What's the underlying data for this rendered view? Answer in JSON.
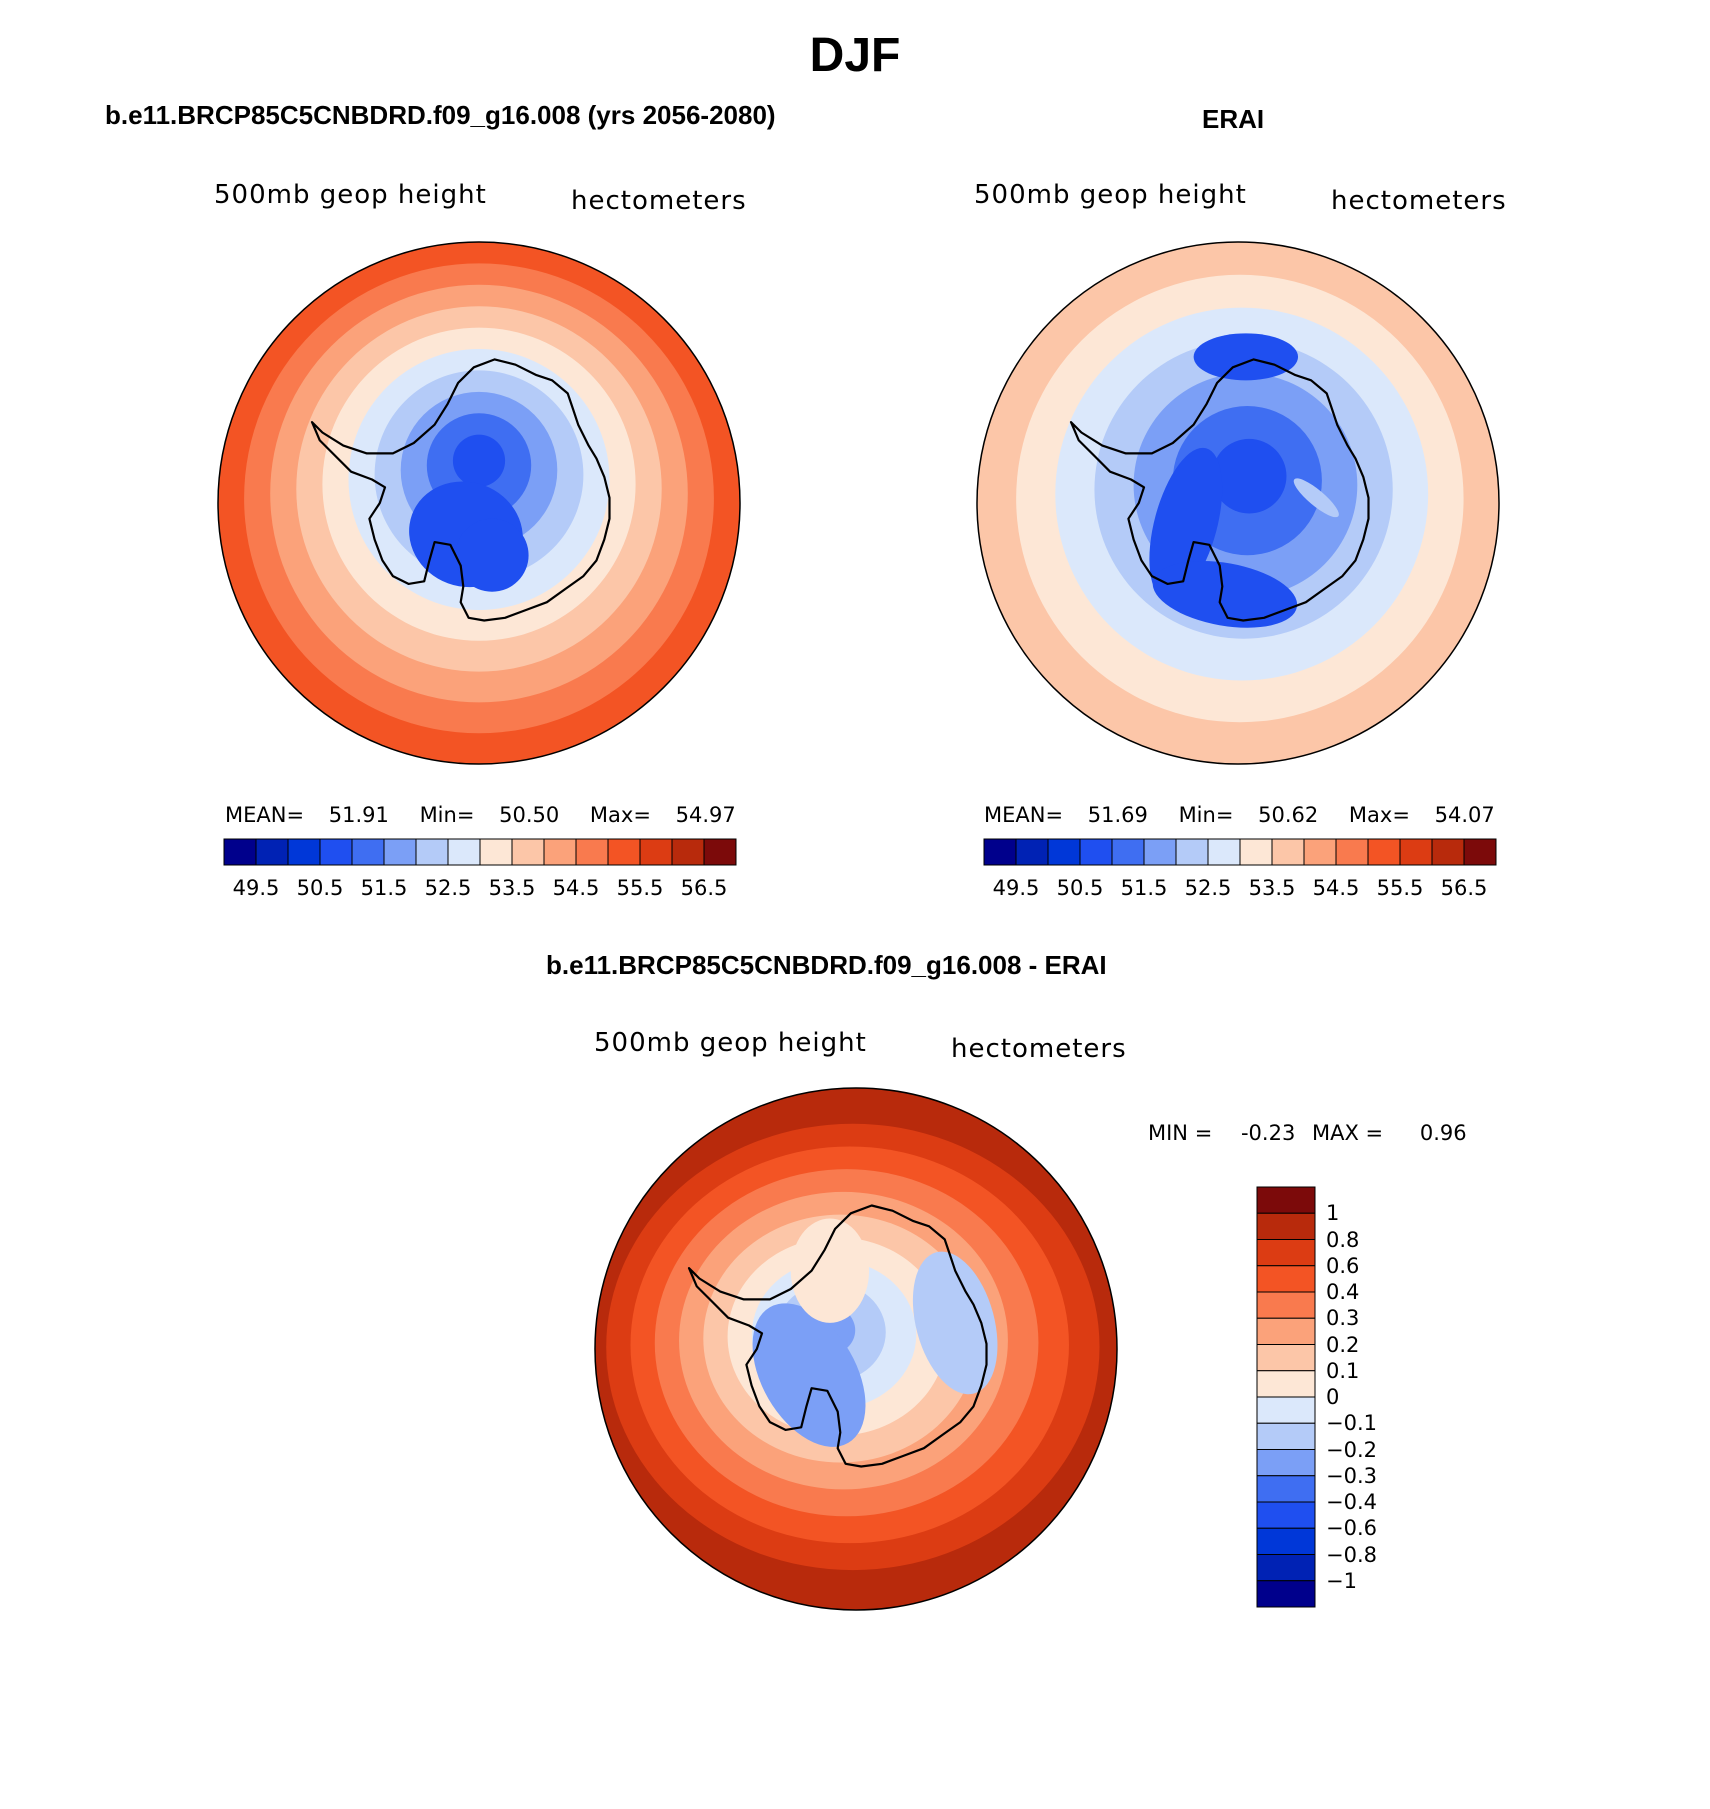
{
  "figure": {
    "title": "DJF"
  },
  "panels": [
    {
      "title": "b.e11.BRCP85C5CNBDRD.f09_g16.008 (yrs 2056-2080)",
      "variable": "500mb geop height",
      "units": "hectometers",
      "stats": {
        "mean_label": "MEAN=",
        "mean": "51.91",
        "min_label": "Min=",
        "min": "50.50",
        "max_label": "Max=",
        "max": "54.97"
      }
    },
    {
      "title": "ERAI",
      "variable": "500mb geop height",
      "units": "hectometers",
      "stats": {
        "mean_label": "MEAN=",
        "mean": "51.69",
        "min_label": "Min=",
        "min": "50.62",
        "max_label": "Max=",
        "max": "54.07"
      }
    },
    {
      "title": "b.e11.BRCP85C5CNBDRD.f09_g16.008 - ERAI",
      "variable": "500mb geop height",
      "units": "hectometers",
      "stats": {
        "min_label": "MIN =",
        "min": "-0.23",
        "max_label": "MAX =",
        "max": "0.96"
      }
    }
  ],
  "colorbars": {
    "height": {
      "colors": [
        "#00008c",
        "#0022b4",
        "#0037d8",
        "#1f4ff0",
        "#3f6ef2",
        "#7b9ff6",
        "#b4cbf8",
        "#dbe8fb",
        "#fde7d6",
        "#fcc6a8",
        "#fba27a",
        "#f97a4e",
        "#f35424",
        "#dc3c13",
        "#b82a0c",
        "#7c0a0a"
      ],
      "tick_labels": [
        "49.5",
        "50.5",
        "51.5",
        "52.5",
        "53.5",
        "54.5",
        "55.5",
        "56.5"
      ]
    },
    "difference": {
      "colors_top_to_bottom": [
        "#7c0a0a",
        "#b82a0c",
        "#dc3c13",
        "#f35424",
        "#f97a4e",
        "#fba27a",
        "#fcc6a8",
        "#fde7d6",
        "#dbe8fb",
        "#b4cbf8",
        "#7b9ff6",
        "#3f6ef2",
        "#1f4ff0",
        "#0037d8",
        "#0022b4",
        "#00008c"
      ],
      "tick_labels": [
        "1",
        "0.8",
        "0.6",
        "0.4",
        "0.3",
        "0.2",
        "0.1",
        "0",
        "-0.1",
        "-0.2",
        "-0.3",
        "-0.4",
        "-0.6",
        "-0.8",
        "-1"
      ]
    }
  },
  "maps": {
    "panel1_rings": [
      "#f35424",
      "#f97a4e",
      "#fba27a",
      "#fcc6a8",
      "#fde7d6",
      "#dbe8fb",
      "#b4cbf8",
      "#7b9ff6",
      "#3f6ef2",
      "#1f4ff0"
    ],
    "panel2_rings": [
      "#fcc6a8",
      "#fde7d6",
      "#dbe8fb",
      "#b4cbf8",
      "#7b9ff6",
      "#3f6ef2",
      "#1f4ff0"
    ],
    "panel3_rings": [
      "#b82a0c",
      "#dc3c13",
      "#f35424",
      "#f97a4e",
      "#fba27a",
      "#fcc6a8",
      "#fde7d6",
      "#dbe8fb",
      "#b4cbf8",
      "#7b9ff6"
    ]
  }
}
